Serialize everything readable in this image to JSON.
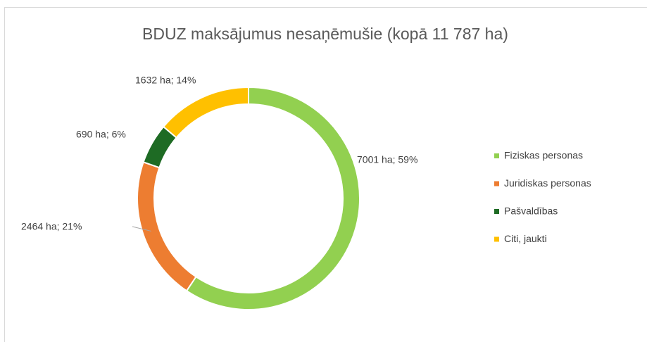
{
  "chart_data": {
    "type": "doughnut",
    "title": "BDUZ maksājumus nesaņēmušie (kopā 11 787 ha)",
    "categories": [
      "Fiziskas personas",
      "Juridiskas personas",
      "Pašvaldības",
      "Citi, jaukti"
    ],
    "values": [
      7001,
      2464,
      690,
      1632
    ],
    "value_labels": [
      "7001 ha; 59%",
      "2464 ha; 21%",
      "690 ha; 6%",
      "1632 ha; 14%"
    ],
    "colors": [
      "#92d050",
      "#ed7d31",
      "#1e6b24",
      "#ffc000"
    ],
    "legend": "right"
  }
}
